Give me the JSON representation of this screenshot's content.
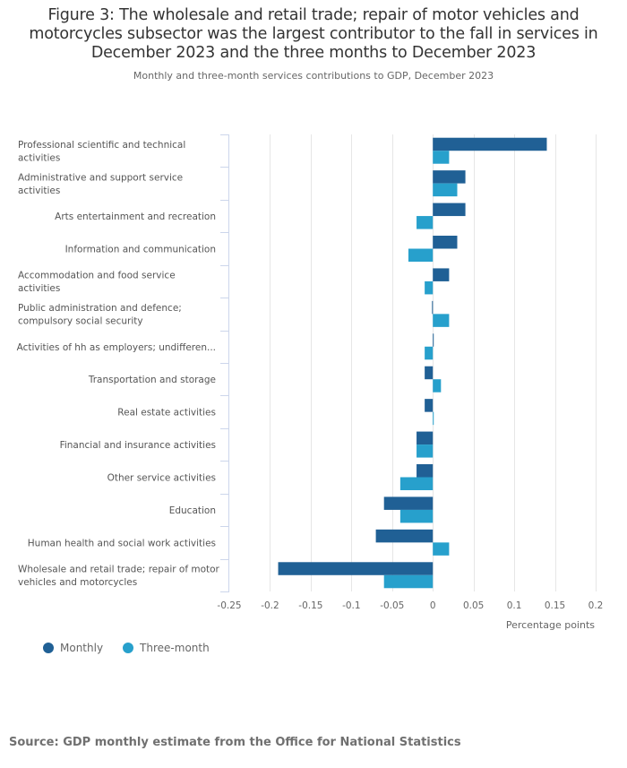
{
  "chart_data": {
    "type": "bar",
    "orientation": "horizontal",
    "title": "Figure 3: The wholesale and retail trade; repair of motor vehicles and motorcycles subsector was the largest contributor to the fall in services in December 2023 and the three months to December 2023",
    "title_lines": [
      "Figure 3: The wholesale and retail trade; repair of motor vehicles and",
      "motorcycles subsector was the largest contributor to the fall in services in",
      "December 2023 and the three months to December 2023"
    ],
    "subtitle": "Monthly and three-month services contributions to GDP, December 2023",
    "xlabel": "Percentage points",
    "ylabel": "",
    "xlim": [
      -0.25,
      0.2
    ],
    "xticks": [
      -0.25,
      -0.2,
      -0.15,
      -0.1,
      -0.05,
      0,
      0.05,
      0.1,
      0.15,
      0.2
    ],
    "xtick_labels": [
      "-0.25",
      "-0.2",
      "-0.15",
      "-0.1",
      "-0.05",
      "0",
      "0.05",
      "0.1",
      "0.15",
      "0.2"
    ],
    "grid": true,
    "legend_position": "bottom-left",
    "categories": [
      "Professional scientific and technical activities",
      "Administrative and support service activities",
      "Arts entertainment and recreation",
      "Information and communication",
      "Accommodation and food service activities",
      "Public administration and defence; compulsory social security",
      "Activities of hh as employers; undifferen...",
      "Transportation and storage",
      "Real estate activities",
      "Financial and insurance activities",
      "Other service activities",
      "Education",
      "Human health and social work activities",
      "Wholesale and retail trade; repair of motor vehicles and motorcycles"
    ],
    "category_label_lines": [
      [
        "Professional scientific and technical",
        "activities"
      ],
      [
        "Administrative and support service",
        "activities"
      ],
      [
        "Arts entertainment and recreation"
      ],
      [
        "Information and communication"
      ],
      [
        "Accommodation and food service",
        "activities"
      ],
      [
        "Public administration and defence;",
        "compulsory social security"
      ],
      [
        "Activities of hh as employers; undifferen..."
      ],
      [
        "Transportation and storage"
      ],
      [
        "Real estate activities"
      ],
      [
        "Financial and insurance activities"
      ],
      [
        "Other service activities"
      ],
      [
        "Education"
      ],
      [
        "Human health and social work activities"
      ],
      [
        "Wholesale and retail trade; repair of motor",
        "vehicles and motorcycles"
      ]
    ],
    "series": [
      {
        "name": "Monthly",
        "color": "#206095",
        "values": [
          0.14,
          0.04,
          0.04,
          0.03,
          0.02,
          -0.001,
          0.001,
          -0.01,
          -0.01,
          -0.02,
          -0.02,
          -0.06,
          -0.07,
          -0.19
        ]
      },
      {
        "name": "Three-month",
        "color": "#27a0cc",
        "values": [
          0.02,
          0.03,
          -0.02,
          -0.03,
          -0.01,
          0.02,
          -0.01,
          0.01,
          0.001,
          -0.02,
          -0.04,
          -0.04,
          0.02,
          -0.06
        ]
      }
    ]
  },
  "source": "Source: GDP monthly estimate from the Office for National Statistics"
}
